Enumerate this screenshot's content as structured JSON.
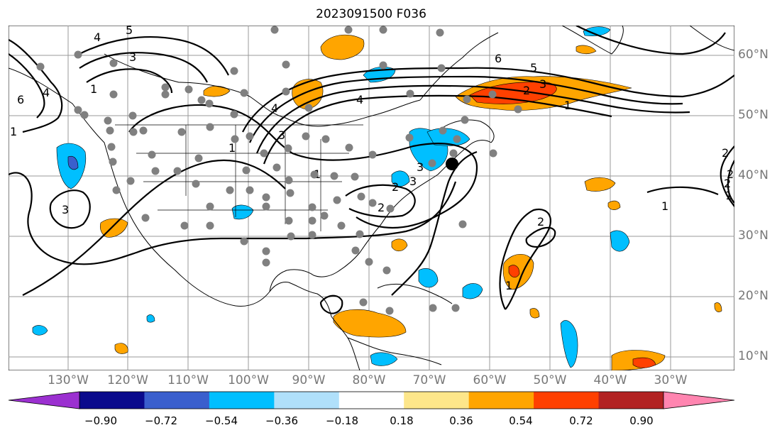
{
  "title": "2023091500 F036",
  "lat_labels": [
    "60°N",
    "50°N",
    "40°N",
    "30°N",
    "20°N",
    "10°N"
  ],
  "lon_labels": [
    "130°W",
    "120°W",
    "110°W",
    "100°W",
    "90°W",
    "80°W",
    "70°W",
    "60°W",
    "50°W",
    "40°W",
    "30°W"
  ],
  "contour_labels": [
    "6",
    "5",
    "4",
    "3",
    "2",
    "1",
    "1",
    "2",
    "3",
    "4",
    "5",
    "6",
    "3",
    "1",
    "2",
    "3",
    "2",
    "1",
    "1",
    "2",
    "1",
    "3",
    "4",
    "1",
    "4",
    "3",
    "2",
    "1",
    "2"
  ],
  "colorbar": {
    "ticks": [
      "−0.90",
      "−0.72",
      "−0.54",
      "−0.36",
      "−0.18",
      "0.18",
      "0.36",
      "0.54",
      "0.72",
      "0.90"
    ],
    "colors": [
      "#9b30d0",
      "#0a0a8c",
      "#3a5fcd",
      "#00bfff",
      "#b0e0fa",
      "#ffffff",
      "#fde68a",
      "#ffa500",
      "#ff4000",
      "#b22222",
      "#ff85b0"
    ]
  },
  "storm_center": "black dot"
}
